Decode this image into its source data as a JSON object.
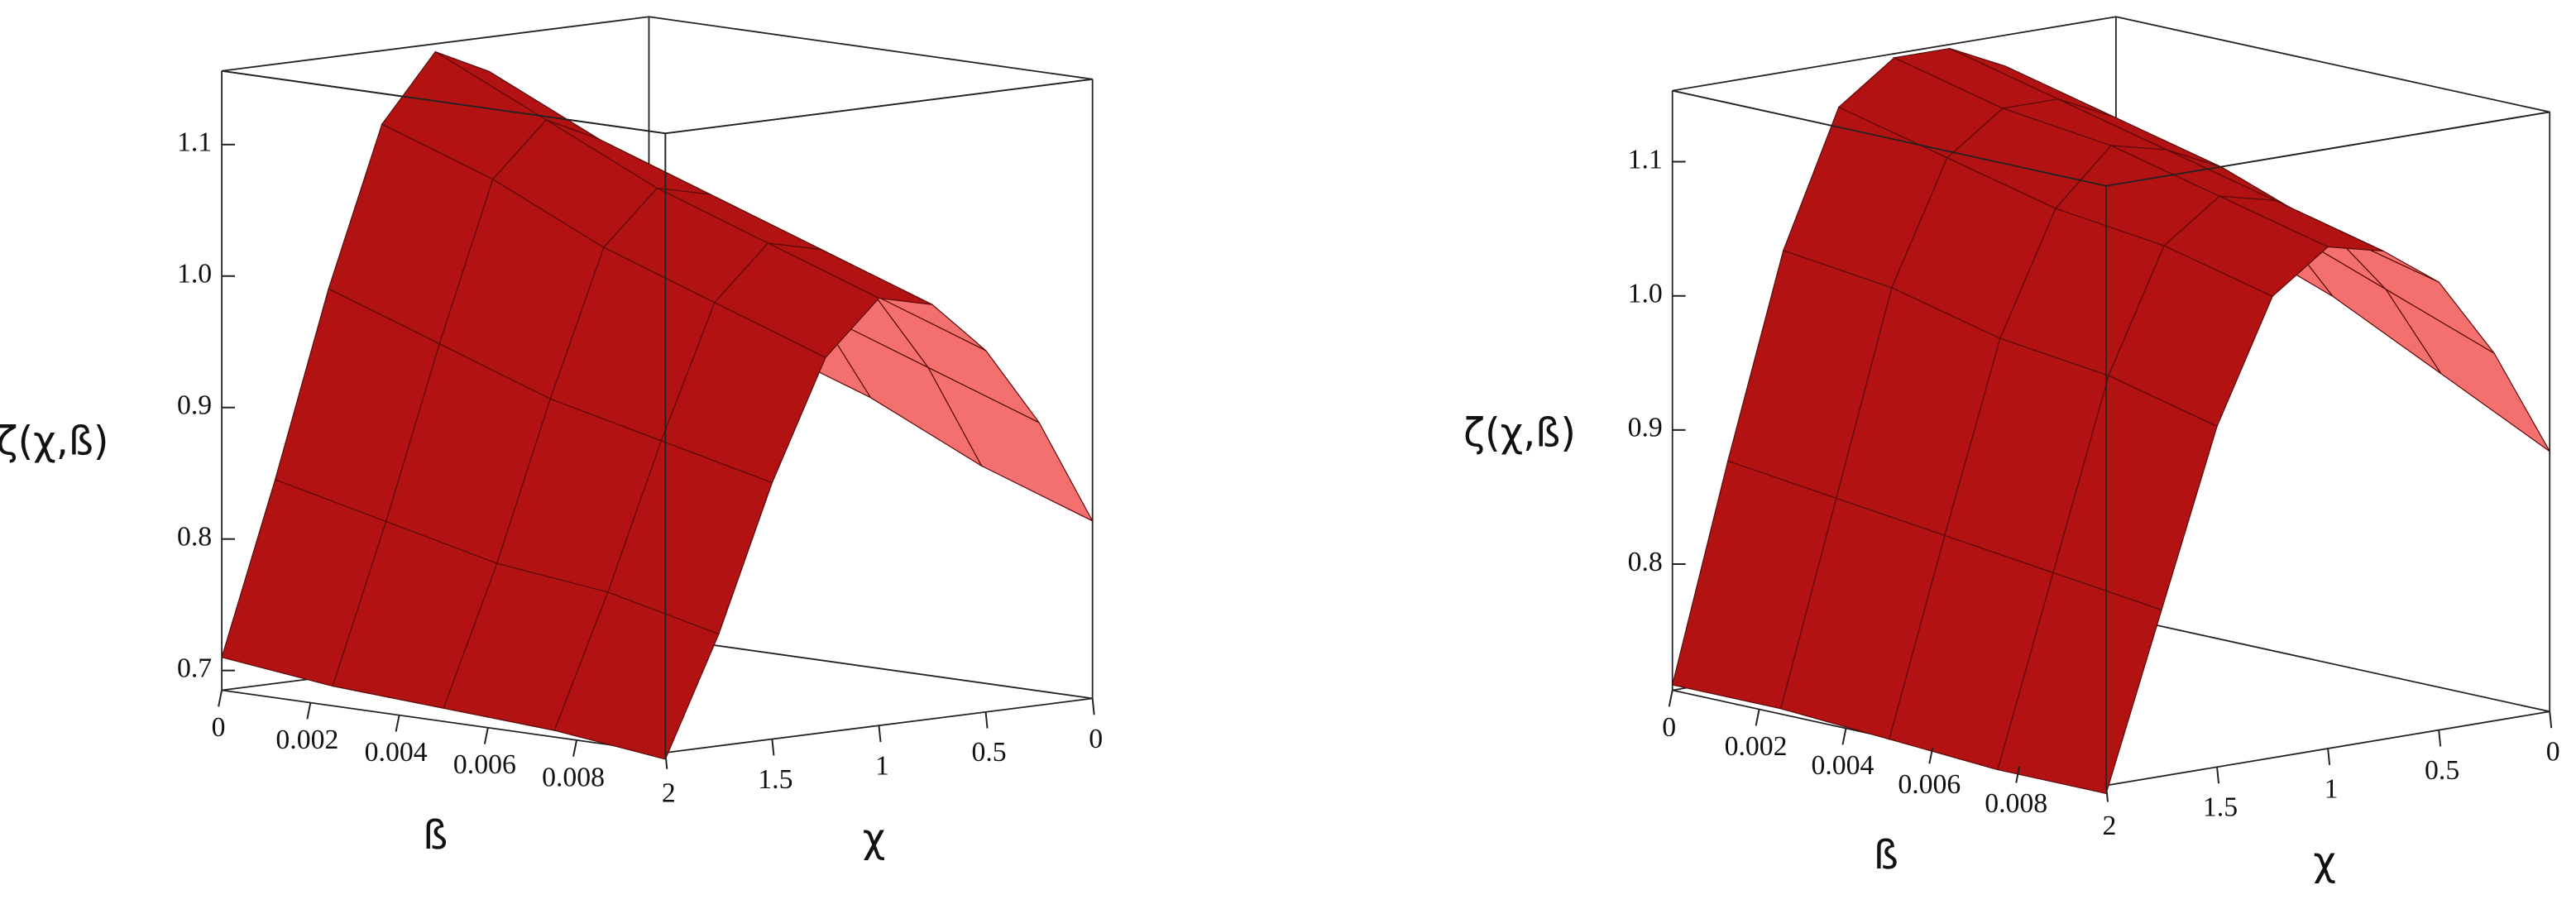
{
  "chart_data": [
    {
      "type": "surface",
      "zlabel": "ζ(χ,ß)",
      "xlabel": "ß",
      "ylabel": "χ",
      "color": "#f4706e",
      "back_color": "#b31212",
      "beta": [
        0,
        0.0025,
        0.005,
        0.0075,
        0.01
      ],
      "chi": [
        0,
        0.25,
        0.5,
        0.75,
        1,
        1.25,
        1.5,
        1.75,
        2
      ],
      "z": [
        [
          0.95,
          1.02,
          1.08,
          1.13,
          1.15,
          1.1,
          0.98,
          0.84,
          0.71
        ],
        [
          0.92,
          0.99,
          1.05,
          1.09,
          1.11,
          1.07,
          0.95,
          0.82,
          0.7
        ],
        [
          0.89,
          0.96,
          1.02,
          1.06,
          1.07,
          1.03,
          0.92,
          0.8,
          0.695
        ],
        [
          0.85,
          0.93,
          0.99,
          1.03,
          1.04,
          1.0,
          0.9,
          0.79,
          0.69
        ],
        [
          0.82,
          0.9,
          0.96,
          1.0,
          1.01,
          0.97,
          0.88,
          0.77,
          0.68
        ]
      ],
      "xlim": [
        0,
        0.01
      ],
      "xticks": [
        0,
        0.002,
        0.004,
        0.006,
        0.008
      ],
      "ylim": [
        0,
        2
      ],
      "yticks": [
        2,
        1.5,
        1,
        0.5,
        0
      ],
      "zlim": [
        0.685,
        1.156
      ],
      "zticks": [
        0.7,
        0.8,
        0.9,
        {
          "value": 1,
          "label": "1.0"
        },
        1.1
      ]
    },
    {
      "type": "surface",
      "zlabel": "ζ(χ,ß)",
      "xlabel": "ß",
      "ylabel": "χ",
      "color": "#f4706e",
      "back_color": "#b31212",
      "beta": [
        0,
        0.0025,
        0.005,
        0.0075,
        0.01
      ],
      "chi": [
        0,
        0.25,
        0.5,
        0.75,
        1,
        1.25,
        1.5,
        1.75,
        2
      ],
      "z": [
        [
          1.05,
          1.1,
          1.13,
          1.15,
          1.15,
          1.12,
          1.02,
          0.87,
          0.71
        ],
        [
          1.01,
          1.07,
          1.11,
          1.13,
          1.13,
          1.1,
          1.01,
          0.86,
          0.71
        ],
        [
          0.98,
          1.04,
          1.09,
          1.11,
          1.12,
          1.08,
          0.99,
          0.85,
          0.705
        ],
        [
          0.94,
          1.01,
          1.06,
          1.09,
          1.1,
          1.07,
          0.98,
          0.84,
          0.7
        ],
        [
          0.9,
          0.98,
          1.04,
          1.07,
          1.08,
          1.05,
          0.96,
          0.83,
          0.7
        ]
      ],
      "xlim": [
        0,
        0.01
      ],
      "xticks": [
        0,
        0.002,
        0.004,
        0.006,
        0.008
      ],
      "ylim": [
        0,
        2
      ],
      "yticks": [
        2,
        1.5,
        1,
        0.5,
        0
      ],
      "zlim": [
        0.706,
        1.153
      ],
      "zticks": [
        0.8,
        0.9,
        {
          "value": 1,
          "label": "1.0"
        },
        1.1
      ]
    }
  ]
}
